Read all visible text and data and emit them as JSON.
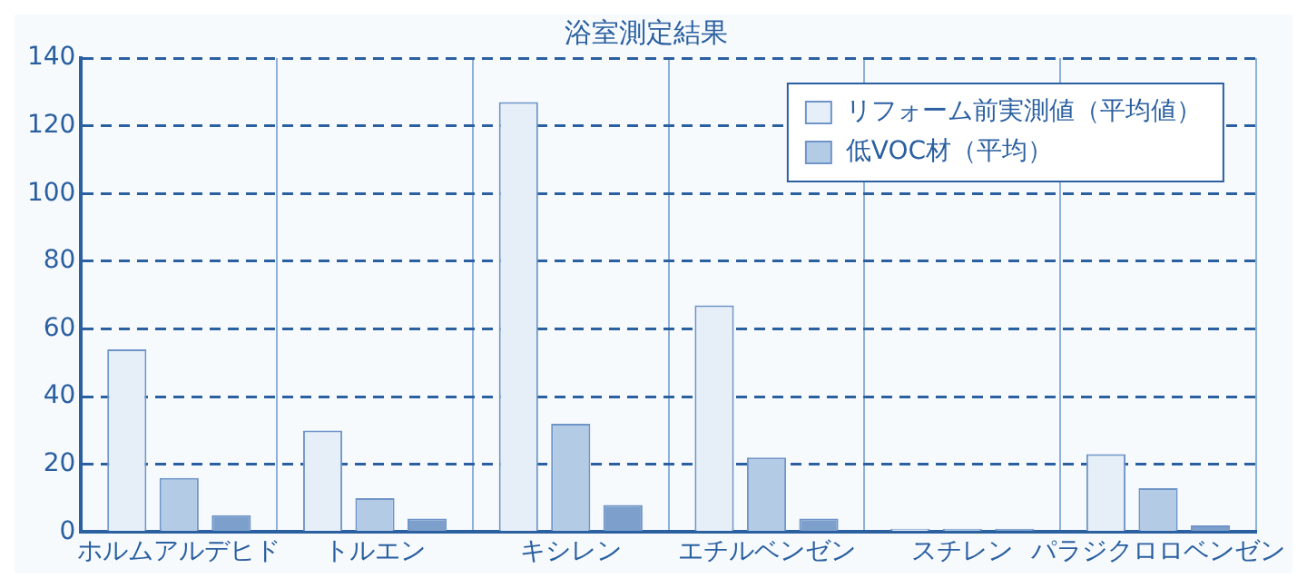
{
  "chart_data": {
    "type": "bar",
    "title": "浴室測定結果",
    "categories": [
      "ホルムアルデヒド",
      "トルエン",
      "キシレン",
      "エチルベンゼン",
      "スチレン",
      "パラジクロロベンゼン"
    ],
    "series": [
      {
        "name": "リフォーム前実測値（平均値）",
        "color": "#e6eef8",
        "values": [
          54,
          30,
          127,
          67,
          1,
          23
        ]
      },
      {
        "name": "低VOC材（平均）",
        "color": "#b4cbe6",
        "values": [
          16,
          10,
          32,
          22,
          1,
          13
        ]
      },
      {
        "color": "#7c9fcc",
        "values": [
          5,
          4,
          8,
          4,
          1,
          2
        ]
      }
    ],
    "ylim": [
      0,
      140
    ],
    "yticks": [
      0,
      20,
      40,
      60,
      80,
      100,
      120,
      140
    ],
    "grid": true,
    "legend": "top right"
  }
}
